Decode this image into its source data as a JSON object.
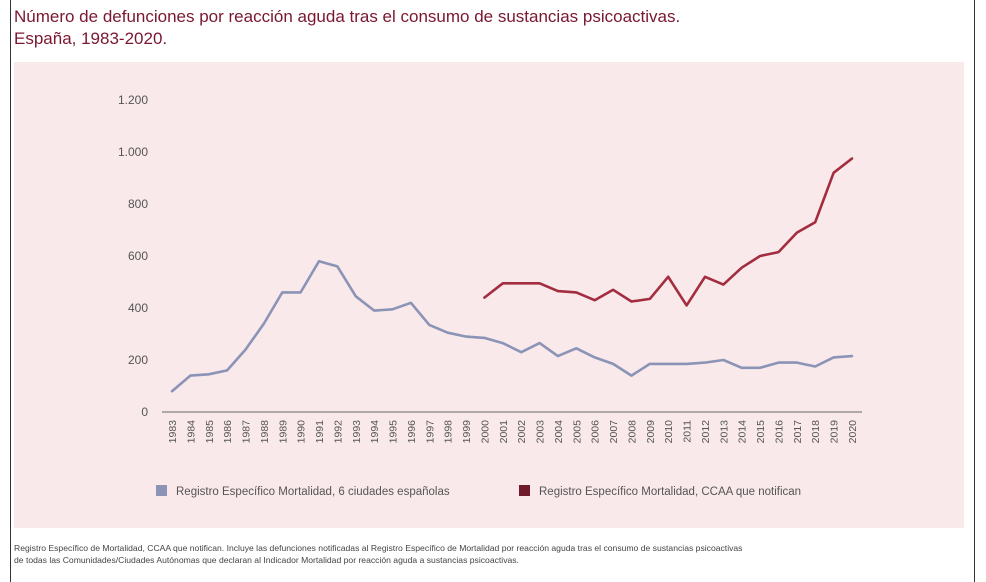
{
  "title": {
    "line1": "Número de defunciones por reacción aguda tras el consumo de sustancias psicoactivas.",
    "line2": "España, 1983-2020."
  },
  "footnote": {
    "line1": "Registro Específico de Mortalidad, CCAA que notifican. Incluye las defunciones notificadas al Registro Específico de Mortalidad por reacción aguda tras el consumo de sustancias psicoactivas",
    "line2": "de todas las Comunidades/Ciudades Autónomas que declaran al Indicador Mortalidad por reacción aguda a sustancias psicoactivas."
  },
  "colors": {
    "background": "#f9e9ea",
    "title": "#7a1730",
    "series1": "#8b93b6",
    "series2": "#a32d3e",
    "axis": "#666666"
  },
  "chart_data": {
    "type": "line",
    "title": "Número de defunciones por reacción aguda tras el consumo de sustancias psicoactivas. España, 1983-2020.",
    "xlabel": "",
    "ylabel": "",
    "ylim": [
      0,
      1200
    ],
    "grid": false,
    "legend_position": "bottom",
    "x": [
      "1983",
      "1984",
      "1985",
      "1986",
      "1987",
      "1988",
      "1989",
      "1990",
      "1991",
      "1992",
      "1993",
      "1994",
      "1995",
      "1996",
      "1997",
      "1998",
      "1999",
      "2000",
      "2001",
      "2002",
      "2003",
      "2004",
      "2005",
      "2006",
      "2007",
      "2008",
      "2009",
      "2010",
      "2011",
      "2012",
      "2013",
      "2014",
      "2015",
      "2016",
      "2017",
      "2018",
      "2019",
      "2020"
    ],
    "y_ticks": [
      {
        "value": 0,
        "label": "0"
      },
      {
        "value": 200,
        "label": "200"
      },
      {
        "value": 400,
        "label": "400"
      },
      {
        "value": 600,
        "label": "600"
      },
      {
        "value": 800,
        "label": "800"
      },
      {
        "value": 1000,
        "label": "1.000"
      },
      {
        "value": 1200,
        "label": "1.200"
      }
    ],
    "series": [
      {
        "name": "Registro Específico Mortalidad, 6 ciudades españolas",
        "color": "#8b93b6",
        "values": [
          80,
          140,
          145,
          160,
          240,
          340,
          460,
          460,
          580,
          560,
          445,
          390,
          395,
          420,
          335,
          305,
          290,
          285,
          265,
          230,
          265,
          215,
          245,
          210,
          185,
          140,
          185,
          185,
          185,
          190,
          200,
          170,
          170,
          190,
          190,
          175,
          210,
          215
        ]
      },
      {
        "name": "Registro Específico Mortalidad, CCAA que notifican",
        "color": "#a32d3e",
        "values": [
          null,
          null,
          null,
          null,
          null,
          null,
          null,
          null,
          null,
          null,
          null,
          null,
          null,
          null,
          null,
          null,
          null,
          440,
          495,
          495,
          495,
          465,
          460,
          430,
          470,
          425,
          435,
          520,
          410,
          520,
          490,
          555,
          600,
          615,
          690,
          730,
          920,
          975
        ]
      }
    ]
  }
}
